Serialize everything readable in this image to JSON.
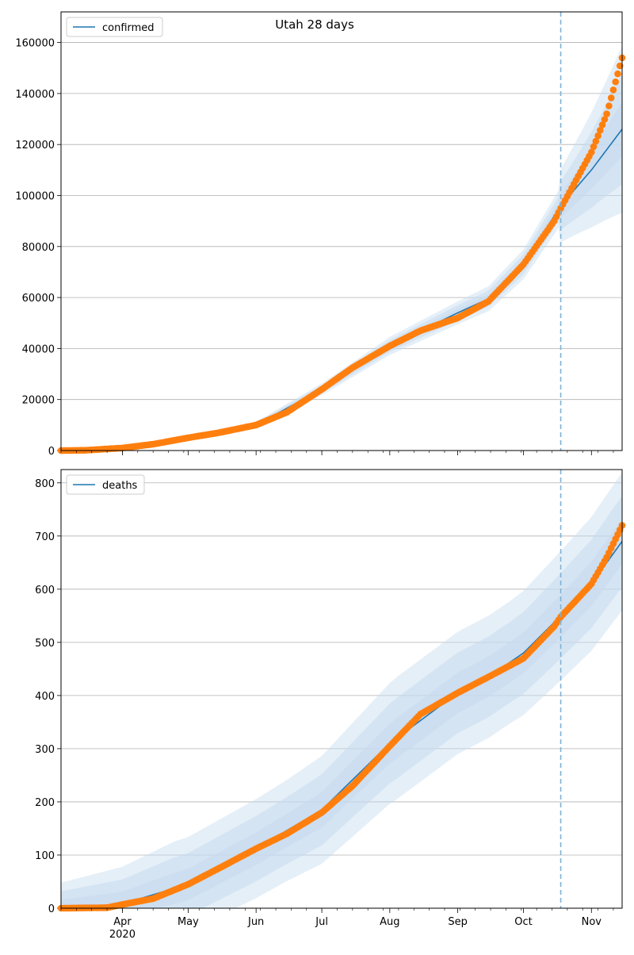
{
  "chart_data": {
    "title": "Utah 28 days",
    "type": "line",
    "x_axis": {
      "ticks": [
        {
          "label": "Apr",
          "date": "2020-04-01"
        },
        {
          "label": "May",
          "date": "2020-05-01"
        },
        {
          "label": "Jun",
          "date": "2020-06-01"
        },
        {
          "label": "Jul",
          "date": "2020-07-01"
        },
        {
          "label": "Aug",
          "date": "2020-08-01"
        },
        {
          "label": "Sep",
          "date": "2020-09-01"
        },
        {
          "label": "Oct",
          "date": "2020-10-01"
        },
        {
          "label": "Nov",
          "date": "2020-11-01"
        }
      ],
      "year_label": "2020",
      "range": [
        "2020-03-04",
        "2020-11-15"
      ],
      "forecast_start": "2020-10-18"
    },
    "panels": [
      {
        "legend": "confirmed",
        "ylim": [
          0,
          172000
        ],
        "yticks": [
          0,
          20000,
          40000,
          60000,
          80000,
          100000,
          120000,
          140000,
          160000
        ],
        "fit": [
          [
            "2020-03-04",
            0
          ],
          [
            "2020-04-01",
            1200
          ],
          [
            "2020-05-01",
            5000
          ],
          [
            "2020-06-01",
            10000
          ],
          [
            "2020-07-01",
            24000
          ],
          [
            "2020-08-01",
            41000
          ],
          [
            "2020-09-01",
            54000
          ],
          [
            "2020-09-15",
            59500
          ],
          [
            "2020-10-01",
            73000
          ],
          [
            "2020-10-18",
            96000
          ],
          [
            "2020-11-01",
            110000
          ],
          [
            "2020-11-15",
            126000
          ]
        ],
        "band_spread_frac": 0.045,
        "forecast_band_spread_frac": [
          0.15,
          0.26
        ],
        "observed": [
          [
            "2020-03-04",
            0
          ],
          [
            "2020-03-15",
            100
          ],
          [
            "2020-04-01",
            1000
          ],
          [
            "2020-04-15",
            2500
          ],
          [
            "2020-05-01",
            5000
          ],
          [
            "2020-05-15",
            7000
          ],
          [
            "2020-06-01",
            10000
          ],
          [
            "2020-06-15",
            15000
          ],
          [
            "2020-07-01",
            24000
          ],
          [
            "2020-07-15",
            32500
          ],
          [
            "2020-08-01",
            41000
          ],
          [
            "2020-08-15",
            47000
          ],
          [
            "2020-09-01",
            52000
          ],
          [
            "2020-09-15",
            58500
          ],
          [
            "2020-10-01",
            73000
          ],
          [
            "2020-10-15",
            90000
          ],
          [
            "2020-10-18",
            95000
          ],
          [
            "2020-11-01",
            117000
          ],
          [
            "2020-11-08",
            132000
          ],
          [
            "2020-11-15",
            154000
          ]
        ]
      },
      {
        "legend": "deaths",
        "ylim": [
          0,
          825
        ],
        "yticks": [
          0,
          100,
          200,
          300,
          400,
          500,
          600,
          700,
          800
        ],
        "fit": [
          [
            "2020-03-04",
            0
          ],
          [
            "2020-04-01",
            8
          ],
          [
            "2020-05-01",
            45
          ],
          [
            "2020-06-01",
            112
          ],
          [
            "2020-07-01",
            185
          ],
          [
            "2020-08-01",
            310
          ],
          [
            "2020-09-01",
            405
          ],
          [
            "2020-09-15",
            435
          ],
          [
            "2020-10-01",
            480
          ],
          [
            "2020-10-18",
            550
          ],
          [
            "2020-11-01",
            610
          ],
          [
            "2020-11-15",
            690
          ]
        ],
        "band_half_width": [
          48,
          88,
          95,
          115,
          115,
          130
        ],
        "observed": [
          [
            "2020-03-04",
            0
          ],
          [
            "2020-03-25",
            1
          ],
          [
            "2020-04-01",
            7
          ],
          [
            "2020-04-15",
            18
          ],
          [
            "2020-05-01",
            45
          ],
          [
            "2020-05-15",
            75
          ],
          [
            "2020-06-01",
            112
          ],
          [
            "2020-06-15",
            140
          ],
          [
            "2020-07-01",
            180
          ],
          [
            "2020-07-15",
            230
          ],
          [
            "2020-08-01",
            305
          ],
          [
            "2020-08-15",
            365
          ],
          [
            "2020-09-01",
            405
          ],
          [
            "2020-09-15",
            435
          ],
          [
            "2020-10-01",
            470
          ],
          [
            "2020-10-15",
            530
          ],
          [
            "2020-10-18",
            548
          ],
          [
            "2020-11-01",
            610
          ],
          [
            "2020-11-08",
            660
          ],
          [
            "2020-11-15",
            720
          ]
        ]
      }
    ],
    "colors": {
      "fit": "#1f77b4",
      "observed": "#ff7f0e",
      "band": "#c6dbef",
      "forecast_line": "#7fb1d6",
      "grid": "#b0b0b0"
    },
    "grid": "horizontal"
  }
}
